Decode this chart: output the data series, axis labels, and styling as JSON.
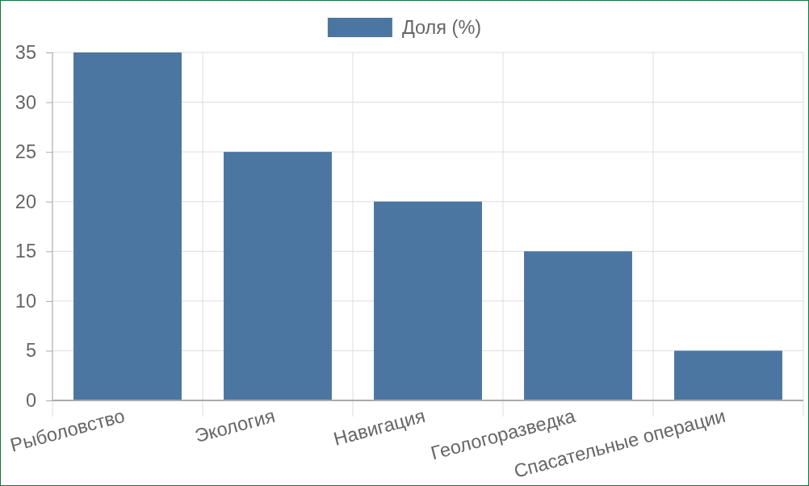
{
  "chart_data": {
    "type": "bar",
    "categories": [
      "Рыболовство",
      "Экология",
      "Навигация",
      "Геологоразведка",
      "Спасательные операции"
    ],
    "series": [
      {
        "name": "Доля (%)",
        "color": "#4c76a2",
        "values": [
          35,
          25,
          20,
          15,
          5
        ]
      }
    ],
    "ylim": [
      0,
      35
    ],
    "yticks": [
      0,
      5,
      10,
      15,
      20,
      25,
      30,
      35
    ],
    "grid": true,
    "legend": "top"
  }
}
